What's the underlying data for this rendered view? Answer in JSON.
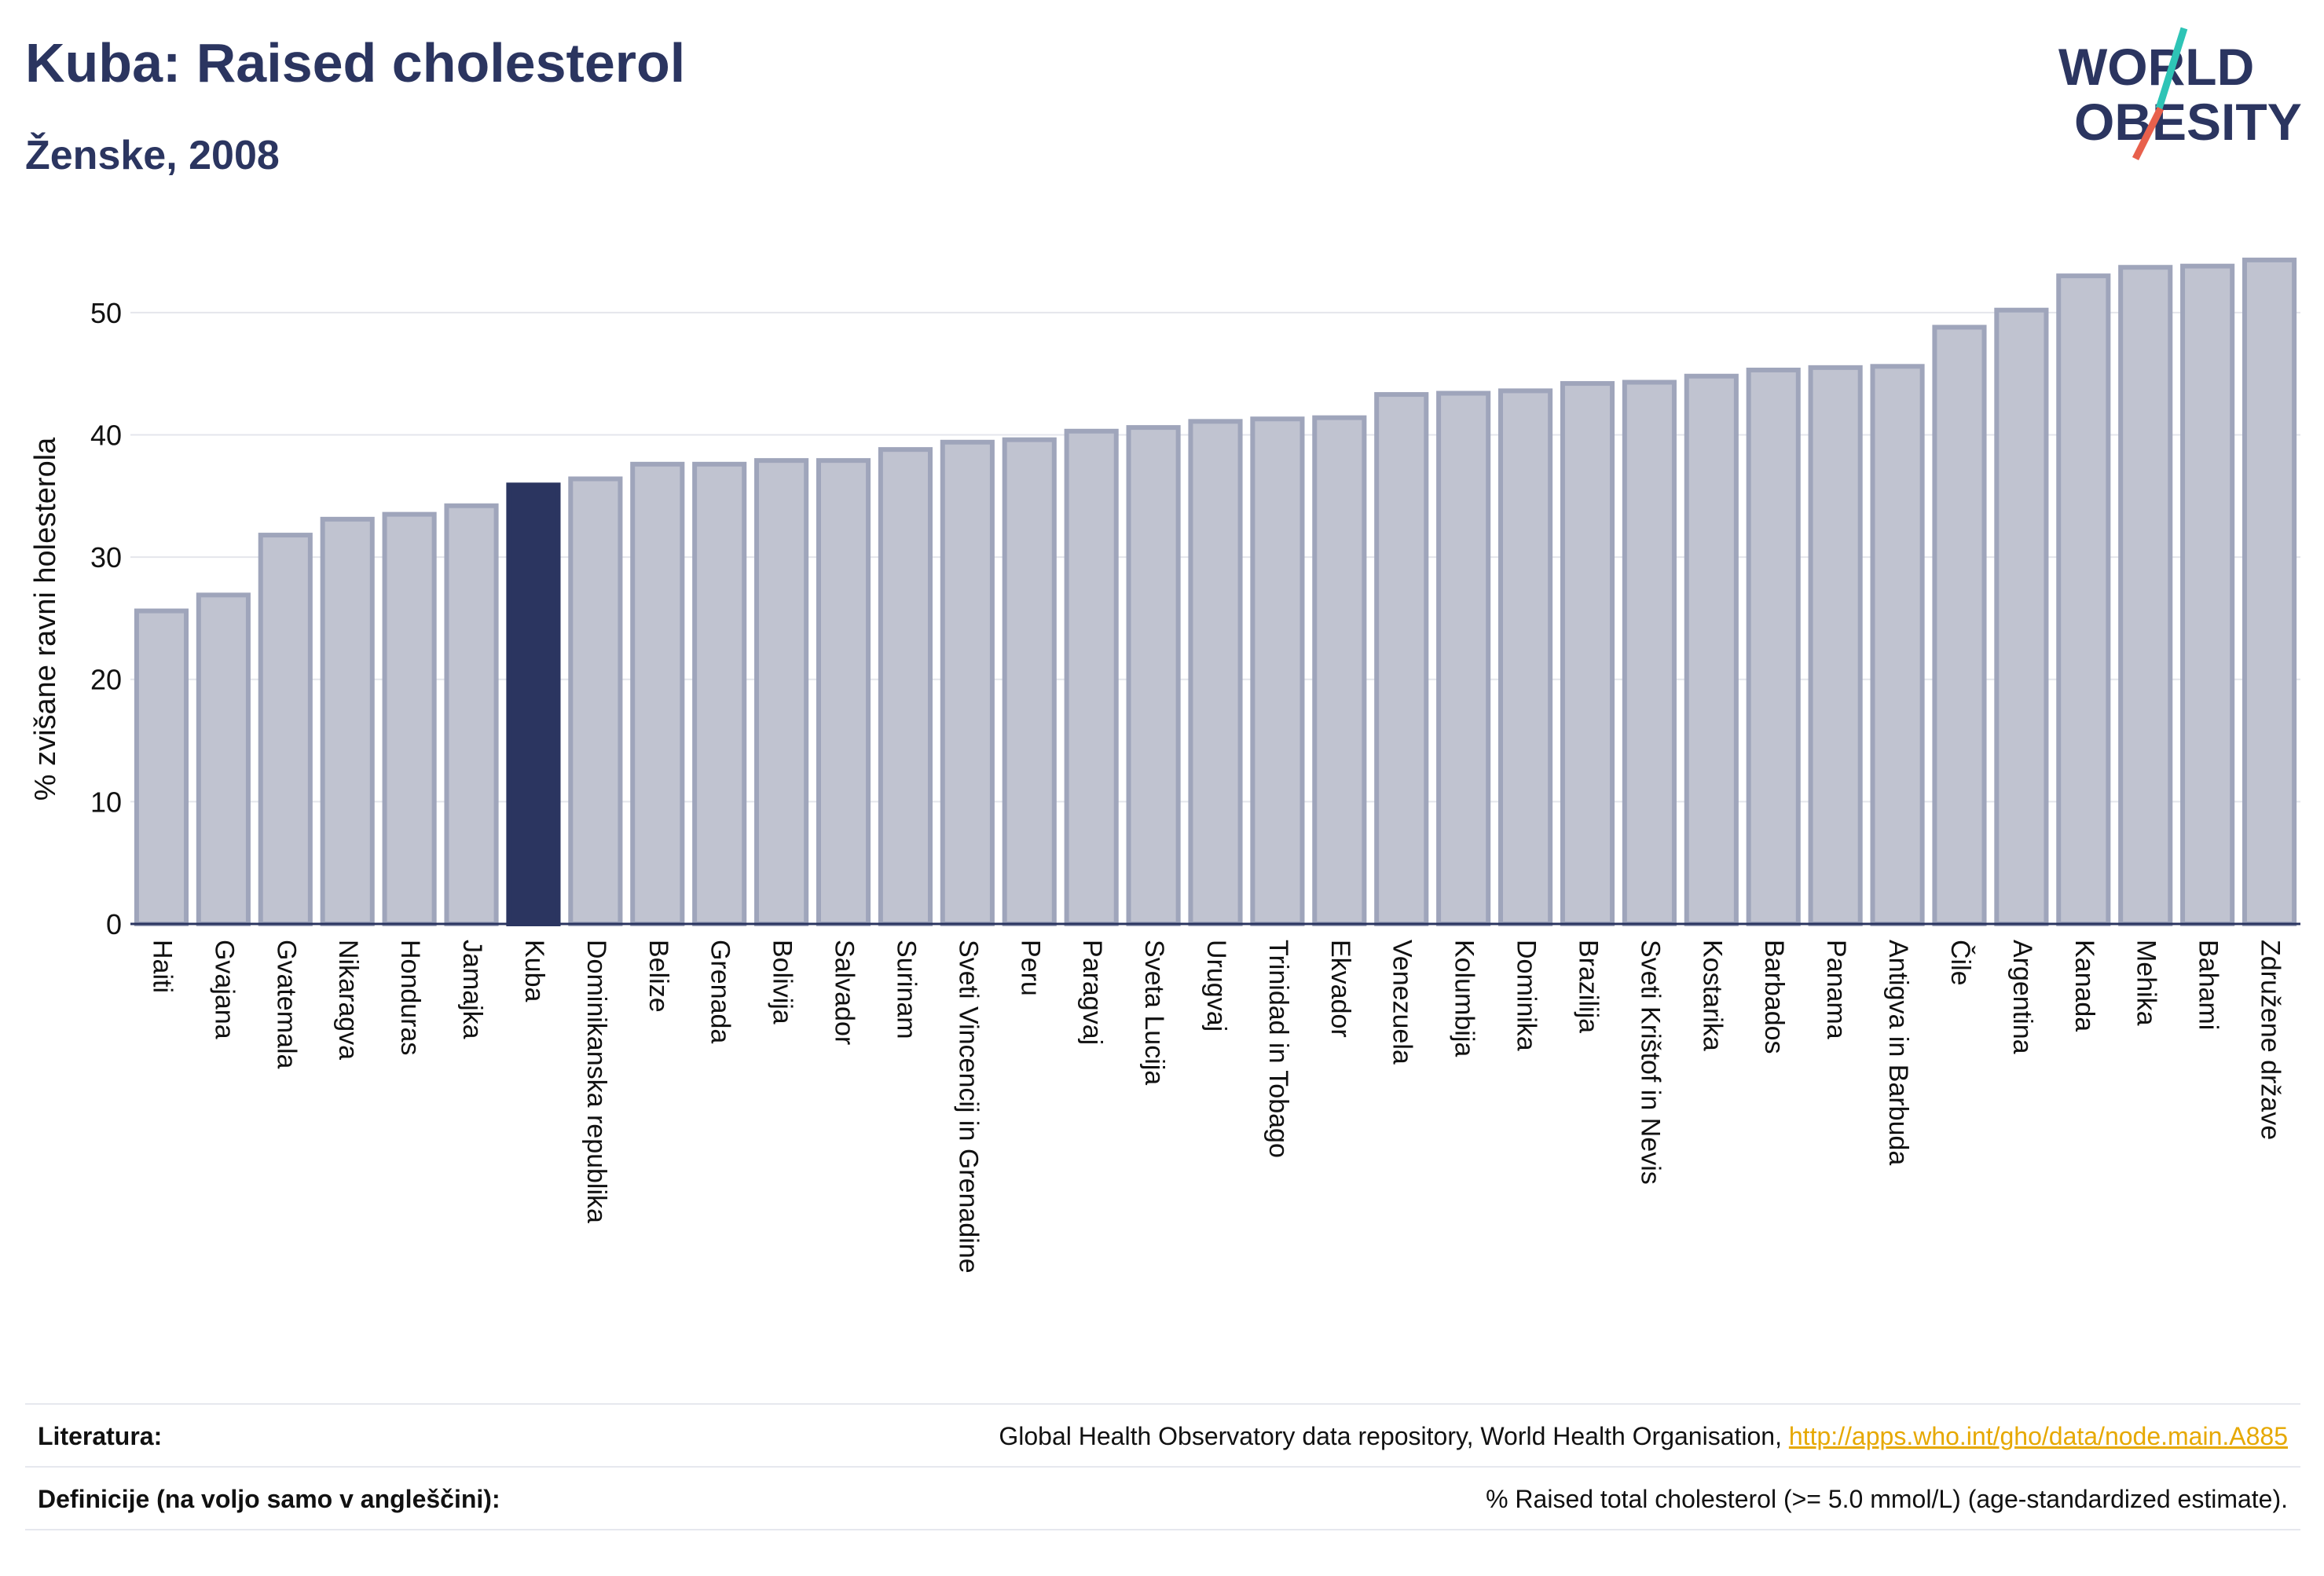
{
  "header": {
    "title": "Kuba: Raised cholesterol",
    "subtitle": "Ženske, 2008"
  },
  "logo": {
    "line1": "WORLD",
    "line2": "OBESITY",
    "accent_colors": [
      "#2ec4b6",
      "#e8604c"
    ]
  },
  "colors": {
    "bar": "#c0c3d0",
    "bar_border": "#9fa5bb",
    "highlight": "#2b3560",
    "title": "#2b3560",
    "link": "#e6a800"
  },
  "chart_data": {
    "type": "bar",
    "ylabel": "% zvišane ravni holesterola",
    "ylim": [
      0,
      55
    ],
    "yticks": [
      0,
      10,
      20,
      30,
      40,
      50
    ],
    "grid": true,
    "highlight": "Kuba",
    "categories": [
      "Haiti",
      "Gvajana",
      "Gvatemala",
      "Nikaragva",
      "Honduras",
      "Jamajka",
      "Kuba",
      "Dominikanska republika",
      "Belize",
      "Grenada",
      "Bolivija",
      "Salvador",
      "Surinam",
      "Sveti Vincencij in Grenadine",
      "Peru",
      "Paragvaj",
      "Sveta Lucija",
      "Urugvaj",
      "Trinidad in Tobago",
      "Ekvador",
      "Venezuela",
      "Kolumbija",
      "Dominika",
      "Brazilija",
      "Sveti Krištof in Nevis",
      "Kostarika",
      "Barbados",
      "Panama",
      "Antigva in Barbuda",
      "Čile",
      "Argentina",
      "Kanada",
      "Mehika",
      "Bahami",
      "Združene države"
    ],
    "values": [
      25.6,
      26.9,
      31.8,
      33.1,
      33.5,
      34.2,
      35.9,
      36.4,
      37.6,
      37.6,
      37.9,
      37.9,
      38.8,
      39.4,
      39.6,
      40.3,
      40.6,
      41.1,
      41.3,
      41.4,
      43.3,
      43.4,
      43.6,
      44.2,
      44.3,
      44.8,
      45.3,
      45.5,
      45.6,
      48.8,
      50.2,
      53.0,
      53.7,
      53.8,
      54.3
    ]
  },
  "footer": {
    "source_label": "Literatura:",
    "source_text": "Global Health Observatory data repository, World Health Organisation,",
    "source_link": "http://apps.who.int/gho/data/node.main.A885",
    "definition_label": "Definicije (na voljo samo v angleščini):",
    "definition_text": "% Raised total cholesterol (>= 5.0 mmol/L) (age-standardized estimate)."
  }
}
